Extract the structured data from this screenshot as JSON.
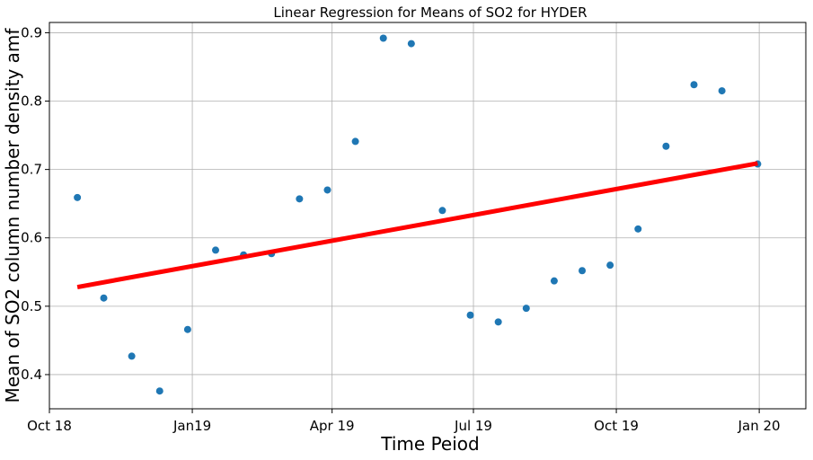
{
  "chart_data": {
    "type": "scatter",
    "title": "Linear Regression for Means of SO2 for HYDER",
    "xlabel": "Time Peiod",
    "ylabel": "Mean of SO2 column number density amf",
    "x_axis_kind": "date",
    "xlim": [
      "2018-10-01",
      "2020-01-31"
    ],
    "ylim": [
      0.35,
      0.915
    ],
    "x_ticks": [
      {
        "date": "2018-10-01",
        "label": "Oct 18"
      },
      {
        "date": "2019-01-01",
        "label": "Jan19"
      },
      {
        "date": "2019-04-01",
        "label": "Apr 19"
      },
      {
        "date": "2019-07-01",
        "label": "Jul 19"
      },
      {
        "date": "2019-10-01",
        "label": "Oct 19"
      },
      {
        "date": "2020-01-01",
        "label": "Jan 20"
      }
    ],
    "y_ticks": [
      0.4,
      0.5,
      0.6,
      0.7,
      0.8,
      0.9
    ],
    "grid": true,
    "point_color": "#1f77b4",
    "line_color": "#ff0000",
    "points": [
      {
        "x": "2018-10-19",
        "y": 0.659
      },
      {
        "x": "2018-11-05",
        "y": 0.512
      },
      {
        "x": "2018-11-23",
        "y": 0.427
      },
      {
        "x": "2018-12-11",
        "y": 0.376
      },
      {
        "x": "2018-12-29",
        "y": 0.466
      },
      {
        "x": "2019-01-16",
        "y": 0.582
      },
      {
        "x": "2019-02-03",
        "y": 0.575
      },
      {
        "x": "2019-02-21",
        "y": 0.577
      },
      {
        "x": "2019-03-11",
        "y": 0.657
      },
      {
        "x": "2019-03-29",
        "y": 0.67
      },
      {
        "x": "2019-04-16",
        "y": 0.741
      },
      {
        "x": "2019-05-04",
        "y": 0.892
      },
      {
        "x": "2019-05-22",
        "y": 0.884
      },
      {
        "x": "2019-06-11",
        "y": 0.64
      },
      {
        "x": "2019-06-29",
        "y": 0.487
      },
      {
        "x": "2019-07-17",
        "y": 0.477
      },
      {
        "x": "2019-08-04",
        "y": 0.497
      },
      {
        "x": "2019-08-22",
        "y": 0.537
      },
      {
        "x": "2019-09-09",
        "y": 0.552
      },
      {
        "x": "2019-09-27",
        "y": 0.56
      },
      {
        "x": "2019-10-15",
        "y": 0.613
      },
      {
        "x": "2019-11-02",
        "y": 0.734
      },
      {
        "x": "2019-11-20",
        "y": 0.824
      },
      {
        "x": "2019-12-08",
        "y": 0.815
      },
      {
        "x": "2019-12-31",
        "y": 0.708
      }
    ],
    "regression_line": [
      {
        "x": "2018-10-19",
        "y": 0.528
      },
      {
        "x": "2019-12-31",
        "y": 0.709
      }
    ]
  }
}
